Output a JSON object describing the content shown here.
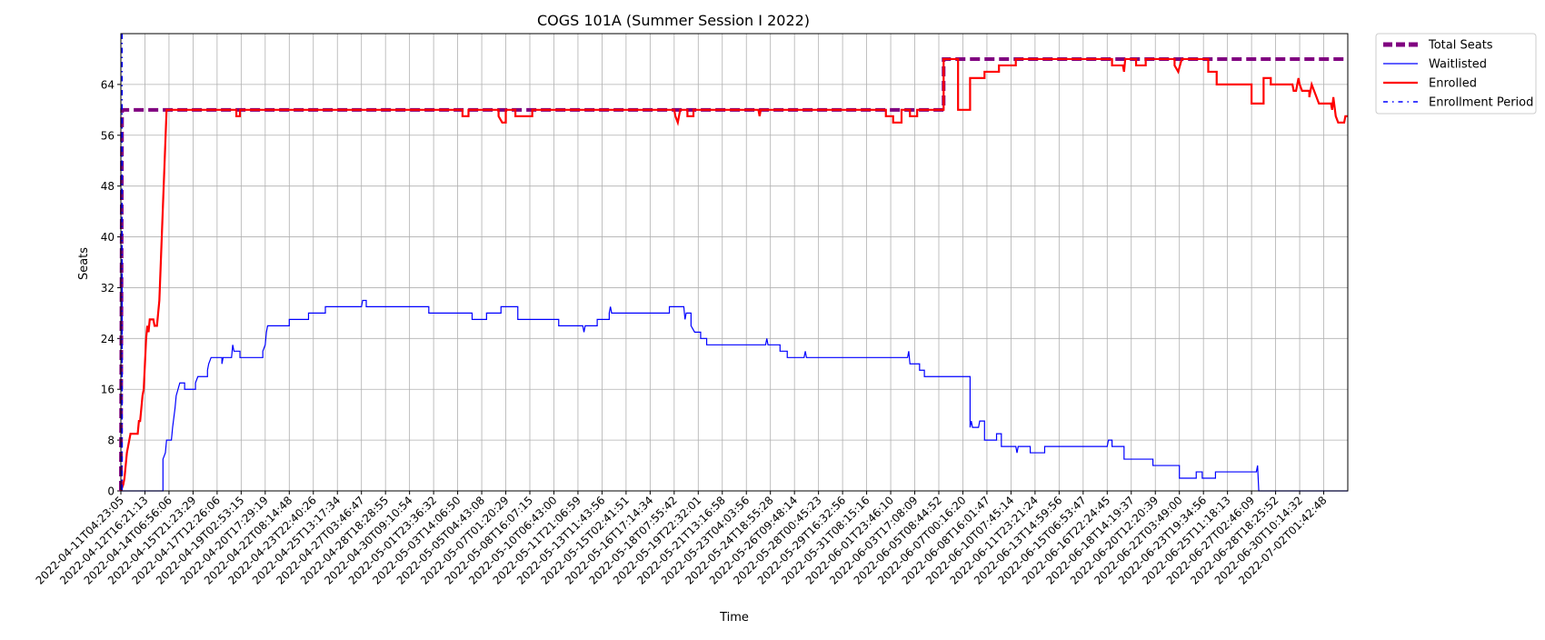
{
  "chart_data": {
    "type": "line",
    "title": "COGS 101A (Summer Session I 2022)",
    "xlabel": "Time",
    "ylabel": "Seats",
    "ylim": [
      0,
      72
    ],
    "xlim": [
      0,
      51
    ],
    "yticks": [
      0,
      8,
      16,
      24,
      32,
      40,
      48,
      56,
      64
    ],
    "grid": true,
    "legend_position": "right-outside-top",
    "x_tick_labels": [
      "2022-04-11T04:23:05",
      "2022-04-12T16:21:13",
      "2022-04-14T06:56:06",
      "2022-04-15T21:23:29",
      "2022-04-17T12:26:06",
      "2022-04-19T02:53:15",
      "2022-04-20T17:29:19",
      "2022-04-22T08:14:48",
      "2022-04-23T22:40:26",
      "2022-04-25T13:17:34",
      "2022-04-27T03:46:47",
      "2022-04-28T18:28:55",
      "2022-04-30T09:10:54",
      "2022-05-01T23:36:32",
      "2022-05-03T14:06:50",
      "2022-05-05T04:43:08",
      "2022-05-07T01:20:29",
      "2022-05-08T16:07:15",
      "2022-05-10T06:43:00",
      "2022-05-11T21:06:59",
      "2022-05-13T11:43:56",
      "2022-05-15T02:41:51",
      "2022-05-16T17:14:34",
      "2022-05-18T07:55:42",
      "2022-05-19T22:32:01",
      "2022-05-21T13:16:58",
      "2022-05-23T04:03:56",
      "2022-05-24T18:55:28",
      "2022-05-26T09:48:14",
      "2022-05-28T00:45:23",
      "2022-05-29T16:32:56",
      "2022-05-31T08:15:16",
      "2022-06-01T23:46:10",
      "2022-06-03T17:08:09",
      "2022-06-05T08:44:52",
      "2022-06-07T00:16:20",
      "2022-06-08T16:01:47",
      "2022-06-10T07:45:14",
      "2022-06-11T23:21:24",
      "2022-06-13T14:59:56",
      "2022-06-15T06:53:47",
      "2022-06-16T22:24:45",
      "2022-06-18T14:19:37",
      "2022-06-20T12:20:39",
      "2022-06-22T03:49:00",
      "2022-06-23T19:34:56",
      "2022-06-25T11:18:13",
      "2022-06-27T02:46:09",
      "2022-06-28T18:25:52",
      "2022-06-30T10:14:32",
      "2022-07-02T01:42:48"
    ],
    "series": [
      {
        "name": "Total Seats",
        "color": "#800080",
        "style": "dashed",
        "points": [
          [
            0,
            0
          ],
          [
            0.05,
            60
          ],
          [
            34.2,
            60
          ],
          [
            34.2,
            68
          ],
          [
            51,
            68
          ]
        ]
      },
      {
        "name": "Waitlisted",
        "color": "#0000ff",
        "style": "solid",
        "points": [
          [
            0,
            0
          ],
          [
            1.75,
            0
          ],
          [
            1.75,
            5
          ],
          [
            1.85,
            6
          ],
          [
            1.9,
            8
          ],
          [
            2.1,
            8
          ],
          [
            2.15,
            10
          ],
          [
            2.25,
            13
          ],
          [
            2.3,
            15
          ],
          [
            2.45,
            17
          ],
          [
            2.65,
            17
          ],
          [
            2.65,
            16
          ],
          [
            3.1,
            16
          ],
          [
            3.1,
            17
          ],
          [
            3.2,
            18
          ],
          [
            3.6,
            18
          ],
          [
            3.6,
            19
          ],
          [
            3.65,
            20
          ],
          [
            3.75,
            21
          ],
          [
            4.2,
            21
          ],
          [
            4.2,
            20
          ],
          [
            4.25,
            21
          ],
          [
            4.6,
            21
          ],
          [
            4.65,
            23
          ],
          [
            4.7,
            22
          ],
          [
            4.95,
            22
          ],
          [
            4.95,
            21
          ],
          [
            5.9,
            21
          ],
          [
            5.9,
            22
          ],
          [
            6.0,
            23
          ],
          [
            6.05,
            25
          ],
          [
            6.1,
            26
          ],
          [
            7.0,
            26
          ],
          [
            7.0,
            27
          ],
          [
            7.8,
            27
          ],
          [
            7.8,
            28
          ],
          [
            8.5,
            28
          ],
          [
            8.5,
            29
          ],
          [
            10.0,
            29
          ],
          [
            10.05,
            30
          ],
          [
            10.2,
            30
          ],
          [
            10.2,
            29
          ],
          [
            12.8,
            29
          ],
          [
            12.8,
            28
          ],
          [
            14.6,
            28
          ],
          [
            14.6,
            27
          ],
          [
            15.2,
            27
          ],
          [
            15.2,
            28
          ],
          [
            15.8,
            28
          ],
          [
            15.8,
            29
          ],
          [
            16.5,
            29
          ],
          [
            16.5,
            27
          ],
          [
            18.2,
            27
          ],
          [
            18.2,
            26
          ],
          [
            19.2,
            26
          ],
          [
            19.25,
            25
          ],
          [
            19.3,
            26
          ],
          [
            19.8,
            26
          ],
          [
            19.8,
            27
          ],
          [
            20.3,
            27
          ],
          [
            20.3,
            28
          ],
          [
            20.35,
            29
          ],
          [
            20.4,
            28
          ],
          [
            22.8,
            28
          ],
          [
            22.8,
            29
          ],
          [
            23.4,
            29
          ],
          [
            23.45,
            27
          ],
          [
            23.5,
            28
          ],
          [
            23.7,
            28
          ],
          [
            23.7,
            26
          ],
          [
            23.85,
            25
          ],
          [
            24.1,
            25
          ],
          [
            24.1,
            24
          ],
          [
            24.35,
            24
          ],
          [
            24.35,
            23
          ],
          [
            26.8,
            23
          ],
          [
            26.85,
            24
          ],
          [
            26.9,
            23
          ],
          [
            27.4,
            23
          ],
          [
            27.4,
            22
          ],
          [
            27.7,
            22
          ],
          [
            27.7,
            21
          ],
          [
            28.4,
            21
          ],
          [
            28.45,
            22
          ],
          [
            28.5,
            21
          ],
          [
            32.7,
            21
          ],
          [
            32.75,
            22
          ],
          [
            32.8,
            20
          ],
          [
            33.2,
            20
          ],
          [
            33.2,
            19
          ],
          [
            33.4,
            19
          ],
          [
            33.4,
            18
          ],
          [
            35.3,
            18
          ],
          [
            35.3,
            10
          ],
          [
            35.35,
            11
          ],
          [
            35.4,
            10
          ],
          [
            35.65,
            10
          ],
          [
            35.7,
            11
          ],
          [
            35.9,
            11
          ],
          [
            35.9,
            8
          ],
          [
            36.4,
            8
          ],
          [
            36.4,
            9
          ],
          [
            36.6,
            9
          ],
          [
            36.6,
            7
          ],
          [
            37.2,
            7
          ],
          [
            37.25,
            6
          ],
          [
            37.3,
            7
          ],
          [
            37.8,
            7
          ],
          [
            37.8,
            6
          ],
          [
            38.4,
            6
          ],
          [
            38.4,
            7
          ],
          [
            41.0,
            7
          ],
          [
            41.05,
            8
          ],
          [
            41.2,
            8
          ],
          [
            41.2,
            7
          ],
          [
            41.7,
            7
          ],
          [
            41.7,
            5
          ],
          [
            42.9,
            5
          ],
          [
            42.9,
            4
          ],
          [
            44.0,
            4
          ],
          [
            44.0,
            2
          ],
          [
            44.7,
            2
          ],
          [
            44.7,
            3
          ],
          [
            44.95,
            3
          ],
          [
            44.95,
            2
          ],
          [
            45.5,
            2
          ],
          [
            45.5,
            3
          ],
          [
            47.2,
            3
          ],
          [
            47.25,
            4
          ],
          [
            47.3,
            0
          ],
          [
            51,
            0
          ]
        ]
      },
      {
        "name": "Enrolled",
        "color": "#ff0000",
        "style": "solid",
        "points": [
          [
            0,
            0
          ],
          [
            0.1,
            1
          ],
          [
            0.15,
            2
          ],
          [
            0.2,
            4
          ],
          [
            0.25,
            6
          ],
          [
            0.3,
            7
          ],
          [
            0.35,
            8
          ],
          [
            0.4,
            9
          ],
          [
            0.7,
            9
          ],
          [
            0.75,
            11
          ],
          [
            0.8,
            11
          ],
          [
            0.85,
            13
          ],
          [
            0.9,
            15
          ],
          [
            0.95,
            16
          ],
          [
            1.0,
            20
          ],
          [
            1.05,
            24
          ],
          [
            1.1,
            26
          ],
          [
            1.15,
            25
          ],
          [
            1.2,
            27
          ],
          [
            1.35,
            27
          ],
          [
            1.4,
            26
          ],
          [
            1.5,
            26
          ],
          [
            1.55,
            28
          ],
          [
            1.6,
            30
          ],
          [
            1.65,
            35
          ],
          [
            1.7,
            40
          ],
          [
            1.75,
            45
          ],
          [
            1.8,
            50
          ],
          [
            1.85,
            55
          ],
          [
            1.9,
            60
          ],
          [
            4.8,
            60
          ],
          [
            4.8,
            59
          ],
          [
            4.95,
            59
          ],
          [
            4.95,
            60
          ],
          [
            14.2,
            60
          ],
          [
            14.2,
            59
          ],
          [
            14.45,
            59
          ],
          [
            14.45,
            60
          ],
          [
            15.7,
            60
          ],
          [
            15.7,
            59
          ],
          [
            15.85,
            58
          ],
          [
            16.0,
            58
          ],
          [
            16.0,
            60
          ],
          [
            16.4,
            60
          ],
          [
            16.4,
            59
          ],
          [
            17.1,
            59
          ],
          [
            17.1,
            60
          ],
          [
            23.0,
            60
          ],
          [
            23.05,
            59
          ],
          [
            23.15,
            58
          ],
          [
            23.25,
            60
          ],
          [
            23.55,
            60
          ],
          [
            23.55,
            59
          ],
          [
            23.8,
            59
          ],
          [
            23.8,
            60
          ],
          [
            26.5,
            60
          ],
          [
            26.55,
            59
          ],
          [
            26.6,
            60
          ],
          [
            31.8,
            60
          ],
          [
            31.8,
            59
          ],
          [
            32.1,
            59
          ],
          [
            32.1,
            58
          ],
          [
            32.45,
            58
          ],
          [
            32.45,
            60
          ],
          [
            32.8,
            60
          ],
          [
            32.8,
            59
          ],
          [
            33.1,
            59
          ],
          [
            33.1,
            60
          ],
          [
            34.2,
            60
          ],
          [
            34.2,
            68
          ],
          [
            34.8,
            68
          ],
          [
            34.8,
            60
          ],
          [
            34.8,
            60
          ],
          [
            35.3,
            60
          ],
          [
            35.3,
            65
          ],
          [
            35.9,
            65
          ],
          [
            35.9,
            66
          ],
          [
            36.5,
            66
          ],
          [
            36.5,
            67
          ],
          [
            37.2,
            67
          ],
          [
            37.2,
            68
          ],
          [
            41.2,
            68
          ],
          [
            41.2,
            67
          ],
          [
            41.65,
            67
          ],
          [
            41.7,
            66
          ],
          [
            41.75,
            68
          ],
          [
            42.0,
            68
          ],
          [
            42.0,
            68
          ],
          [
            42.2,
            68
          ],
          [
            42.2,
            67
          ],
          [
            42.6,
            67
          ],
          [
            42.6,
            68
          ],
          [
            43.8,
            68
          ],
          [
            43.8,
            67
          ],
          [
            43.95,
            66
          ],
          [
            44.1,
            68
          ],
          [
            45.2,
            68
          ],
          [
            45.2,
            66
          ],
          [
            45.55,
            66
          ],
          [
            45.55,
            64
          ],
          [
            47.0,
            64
          ],
          [
            47.0,
            61
          ],
          [
            47.5,
            61
          ],
          [
            47.5,
            65
          ],
          [
            47.8,
            65
          ],
          [
            47.8,
            64
          ],
          [
            48.7,
            64
          ],
          [
            48.75,
            63
          ],
          [
            48.85,
            63
          ],
          [
            48.9,
            64
          ],
          [
            48.95,
            65
          ],
          [
            49.0,
            64
          ],
          [
            49.1,
            63
          ],
          [
            49.4,
            63
          ],
          [
            49.4,
            62
          ],
          [
            49.5,
            64
          ],
          [
            49.6,
            63
          ],
          [
            49.7,
            62
          ],
          [
            49.8,
            61
          ],
          [
            50.3,
            61
          ],
          [
            50.35,
            60
          ],
          [
            50.4,
            62
          ],
          [
            50.5,
            59
          ],
          [
            50.6,
            58
          ],
          [
            50.85,
            58
          ],
          [
            50.9,
            59
          ],
          [
            51.0,
            59
          ]
        ]
      },
      {
        "name": "Enrollment Period",
        "color": "#0000ff",
        "style": "dashdot",
        "vertical_at": 0.05
      }
    ]
  }
}
